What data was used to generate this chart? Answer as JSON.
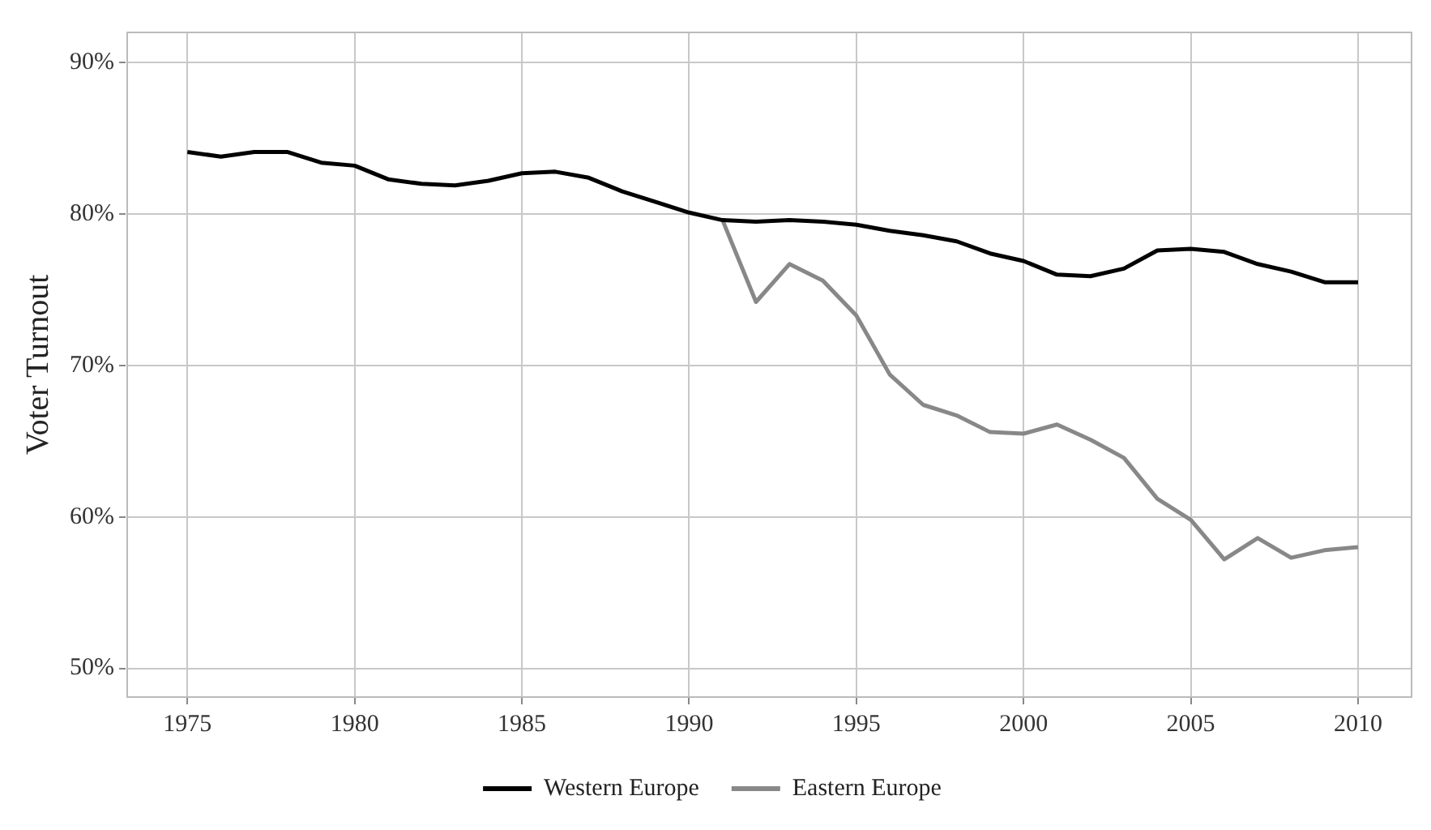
{
  "chart_data": {
    "type": "line",
    "ylabel": "Voter Turnout",
    "xlim": [
      1973.2,
      2011.6
    ],
    "xticks": [
      1975,
      1980,
      1985,
      1990,
      1995,
      2000,
      2005,
      2010
    ],
    "ylim": [
      48.1,
      92
    ],
    "yticks": [
      {
        "value": 50,
        "label": "50%"
      },
      {
        "value": 60,
        "label": "60%"
      },
      {
        "value": 70,
        "label": "70%"
      },
      {
        "value": 80,
        "label": "80%"
      },
      {
        "value": 90,
        "label": "90%"
      }
    ],
    "grid": true,
    "legend": "bottom",
    "marker": "none",
    "line_style": "solid",
    "series": [
      {
        "name": "Western Europe",
        "color": "#000000",
        "x": [
          1975,
          1976,
          1977,
          1978,
          1979,
          1980,
          1981,
          1982,
          1983,
          1984,
          1985,
          1986,
          1987,
          1988,
          1989,
          1990,
          1991,
          1992,
          1993,
          1994,
          1995,
          1996,
          1997,
          1998,
          1999,
          2000,
          2001,
          2002,
          2003,
          2004,
          2005,
          2006,
          2007,
          2008,
          2009,
          2010
        ],
        "values": [
          84.1,
          83.8,
          84.1,
          84.1,
          83.4,
          83.2,
          82.3,
          82.0,
          81.9,
          82.2,
          82.7,
          82.8,
          82.4,
          81.5,
          80.8,
          80.1,
          79.6,
          79.5,
          79.6,
          79.5,
          79.3,
          78.9,
          78.6,
          78.2,
          77.4,
          76.9,
          76.0,
          75.9,
          76.4,
          77.6,
          77.7,
          77.5,
          76.7,
          76.2,
          75.5,
          75.5
        ]
      },
      {
        "name": "Eastern Europe",
        "color": "#888888",
        "x": [
          1991,
          1992,
          1993,
          1994,
          1995,
          1996,
          1997,
          1998,
          1999,
          2000,
          2001,
          2002,
          2003,
          2004,
          2005,
          2006,
          2007,
          2008,
          2009,
          2010
        ],
        "values": [
          79.6,
          74.2,
          76.7,
          75.6,
          73.3,
          69.4,
          67.4,
          66.7,
          65.6,
          65.5,
          66.1,
          65.1,
          63.9,
          61.2,
          59.8,
          57.2,
          58.6,
          57.3,
          57.8,
          58.0
        ]
      }
    ]
  }
}
